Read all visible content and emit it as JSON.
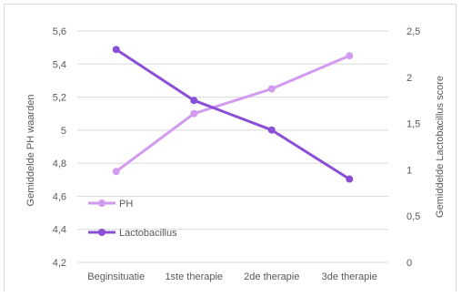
{
  "chart_data": {
    "type": "line",
    "title": "",
    "categories": [
      "Beginsituatie",
      "1ste therapie",
      "2de therapie",
      "3de therapie"
    ],
    "y_left": {
      "label": "Gemiddelde PH waarden",
      "ylim": [
        4.2,
        5.6
      ],
      "ticks": [
        "4,2",
        "4,4",
        "4,6",
        "4,8",
        "5",
        "5,2",
        "5,4",
        "5,6"
      ]
    },
    "y_right": {
      "label": "Gemiddelde Lactobacillus score",
      "ylim": [
        0,
        2.5
      ],
      "ticks": [
        "0",
        "0,5",
        "1",
        "1,5",
        "2",
        "2,5"
      ]
    },
    "series": [
      {
        "name": "PH",
        "axis": "left",
        "color": "#d19bef",
        "values": [
          4.75,
          5.1,
          5.25,
          5.45
        ]
      },
      {
        "name": "Lactobacillus",
        "axis": "right",
        "color": "#8a4fd6",
        "values": [
          2.3,
          1.75,
          1.43,
          0.9
        ]
      }
    ],
    "legend": "inside-bottom-left",
    "grid": true
  }
}
